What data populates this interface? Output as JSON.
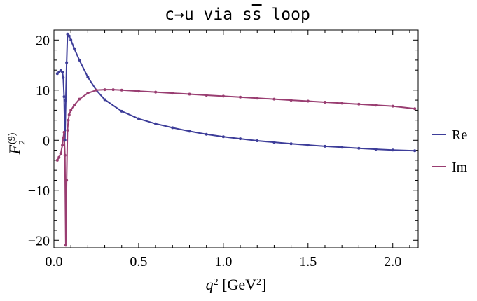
{
  "chart_data": {
    "type": "line",
    "title": "c→u via s",
    "title_overline": "s",
    "title_tail": " loop",
    "xlabel_sym": "q",
    "xlabel_sup": "2",
    "xlabel_unit": " [GeV",
    "xlabel_unit_sup": "2",
    "xlabel_close": "]",
    "ylabel_sym": "F",
    "ylabel_sub": "2",
    "ylabel_sup": "(9)",
    "xlim": [
      0.0,
      2.15
    ],
    "ylim": [
      -21.5,
      22.0
    ],
    "xticks": [
      0.0,
      0.5,
      1.0,
      1.5,
      2.0
    ],
    "xtick_labels": [
      "0.0",
      "0.5",
      "1.0",
      "1.5",
      "2.0"
    ],
    "yticks": [
      -20,
      -10,
      0,
      10,
      20
    ],
    "ytick_labels": [
      "−20",
      "−10",
      "0",
      "10",
      "20"
    ],
    "legend_position": "right",
    "series": [
      {
        "name": "Re",
        "color": "#3d3d99",
        "x": [
          0.02,
          0.03,
          0.04,
          0.05,
          0.055,
          0.06,
          0.065,
          0.07,
          0.075,
          0.08,
          0.09,
          0.1,
          0.12,
          0.15,
          0.2,
          0.25,
          0.3,
          0.4,
          0.5,
          0.6,
          0.7,
          0.8,
          0.9,
          1.0,
          1.1,
          1.2,
          1.3,
          1.4,
          1.5,
          1.6,
          1.7,
          1.8,
          1.9,
          2.0,
          2.13
        ],
        "y": [
          13.3,
          13.6,
          13.9,
          13.6,
          12.5,
          8.7,
          0.0,
          8.0,
          15.5,
          21.2,
          20.8,
          20.0,
          18.3,
          16.0,
          12.6,
          10.0,
          8.1,
          5.8,
          4.3,
          3.3,
          2.5,
          1.8,
          1.2,
          0.7,
          0.3,
          -0.1,
          -0.4,
          -0.7,
          -0.95,
          -1.2,
          -1.4,
          -1.6,
          -1.8,
          -1.95,
          -2.1
        ]
      },
      {
        "name": "Im",
        "color": "#993d71",
        "x": [
          0.02,
          0.03,
          0.04,
          0.05,
          0.055,
          0.06,
          0.065,
          0.07,
          0.075,
          0.08,
          0.085,
          0.09,
          0.1,
          0.12,
          0.15,
          0.2,
          0.25,
          0.3,
          0.35,
          0.4,
          0.5,
          0.6,
          0.7,
          0.8,
          0.9,
          1.0,
          1.1,
          1.2,
          1.3,
          1.4,
          1.5,
          1.6,
          1.7,
          1.8,
          1.9,
          2.0,
          2.13
        ],
        "y": [
          -4.0,
          -3.4,
          -2.7,
          -1.0,
          0.5,
          1.6,
          -3.0,
          -21.0,
          -8.0,
          2.0,
          4.0,
          5.1,
          6.0,
          7.0,
          8.2,
          9.4,
          10.0,
          10.1,
          10.1,
          10.0,
          9.8,
          9.6,
          9.4,
          9.2,
          9.0,
          8.8,
          8.6,
          8.4,
          8.2,
          8.0,
          7.8,
          7.6,
          7.4,
          7.2,
          7.0,
          6.8,
          6.3
        ]
      }
    ]
  }
}
